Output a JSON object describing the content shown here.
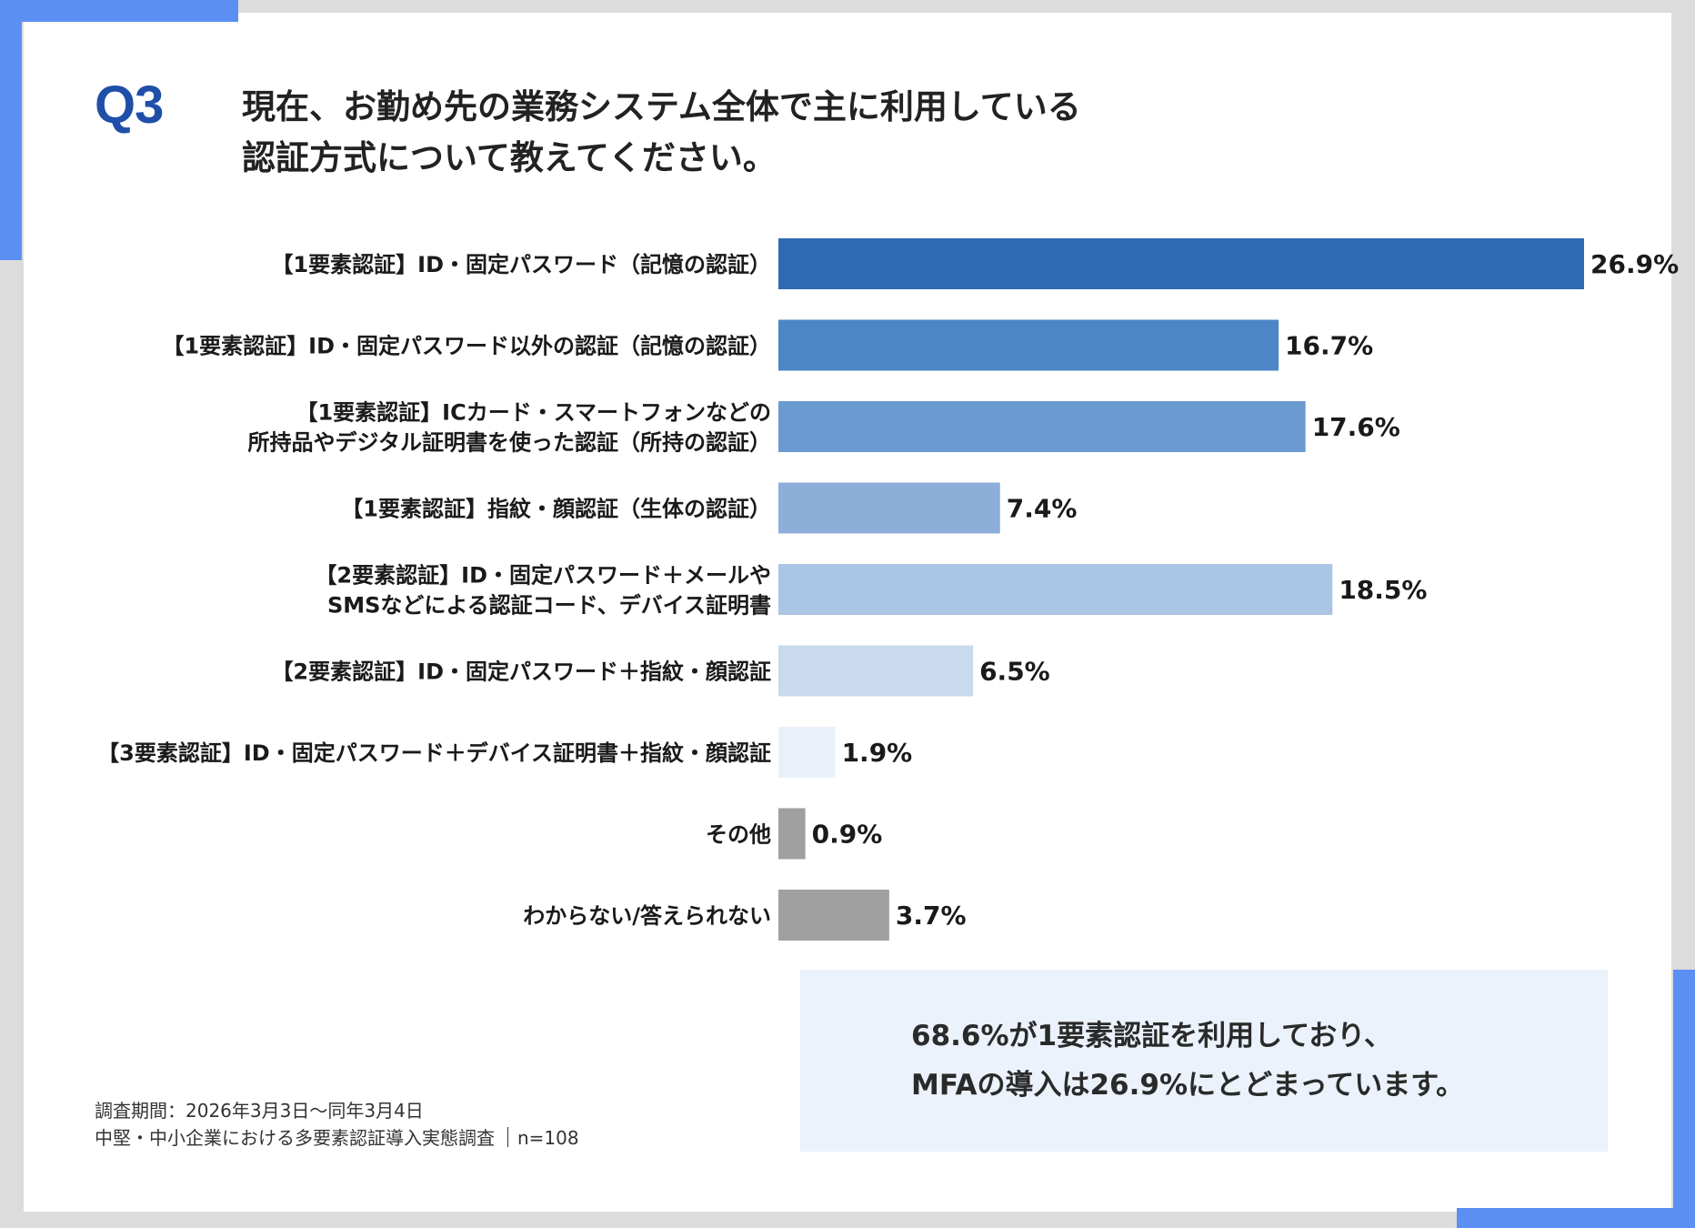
{
  "title": {
    "q_label": "Q3",
    "lines": [
      "現在、お勤め先の業務システム全体で主に利用している",
      "認証方式について教えてください。"
    ]
  },
  "chart_data": {
    "type": "bar",
    "orientation": "horizontal",
    "categories": [
      [
        "【1要素認証】ID・固定パスワード（記憶の認証）"
      ],
      [
        "【1要素認証】ID・固定パスワード以外の認証（記憶の認証）"
      ],
      [
        "【1要素認証】ICカード・スマートフォンなどの",
        "所持品やデジタル証明書を使った認証（所持の認証）"
      ],
      [
        "【1要素認証】指紋・顔認証（生体の認証）"
      ],
      [
        "【2要素認証】ID・固定パスワード＋メールや",
        "SMSなどによる認証コード、デバイス証明書"
      ],
      [
        "【2要素認証】ID・固定パスワード＋指紋・顔認証"
      ],
      [
        "【3要素認証】ID・固定パスワード＋デバイス証明書＋指紋・顔認証"
      ],
      [
        "その他"
      ],
      [
        "わからない/答えられない"
      ]
    ],
    "values": [
      26.9,
      16.7,
      17.6,
      7.4,
      18.5,
      6.5,
      1.9,
      0.9,
      3.7
    ],
    "value_labels": [
      "26.9%",
      "16.7%",
      "17.6%",
      "7.4%",
      "18.5%",
      "6.5%",
      "1.9%",
      "0.9%",
      "3.7%"
    ],
    "colors": [
      "#2f69b3",
      "#4c86c6",
      "#6b9ad0",
      "#8caed9",
      "#abc5e4",
      "#cadaee",
      "#e9f0f9",
      "#a0a0a0",
      "#a0a0a0"
    ],
    "xlim": [
      0,
      26.9
    ],
    "grid": false,
    "legend": "none"
  },
  "note": {
    "lines": [
      "68.6%が1要素認証を利用しており、",
      "MFAの導入は26.9%にとどまっています。"
    ]
  },
  "footnote": {
    "period": "調査期間：2026年3月3日～同年3月4日",
    "survey": "中堅・中小企業における多要素認証導入実態調査",
    "n": "n=108"
  },
  "accent_color": "#5b8ff3"
}
